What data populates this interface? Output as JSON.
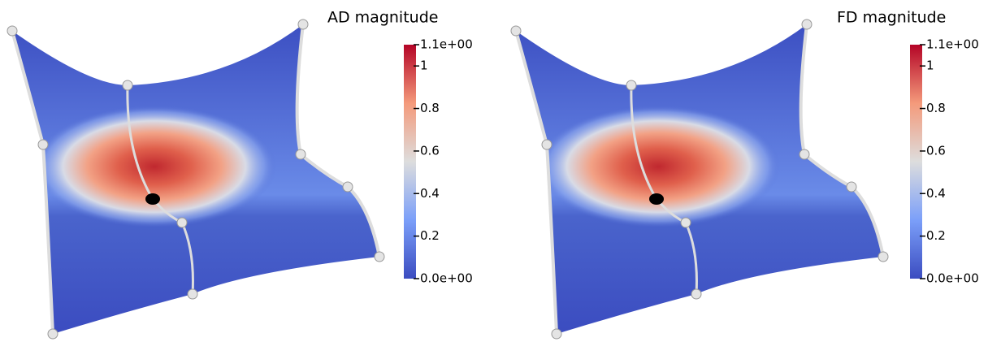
{
  "panels": [
    {
      "title": "AD magnitude",
      "colorbar": {
        "range": [
          0,
          1.1
        ],
        "ticks": [
          {
            "value": 1.1,
            "label": "1.1e+00"
          },
          1,
          0.8,
          0.6,
          0.4,
          0.2,
          {
            "value": 0,
            "label": "0.0e+00"
          }
        ]
      }
    },
    {
      "title": "FD magnitude",
      "colorbar": {
        "range": [
          0,
          1.1
        ],
        "ticks": [
          {
            "value": 1.1,
            "label": "1.1e+00"
          },
          1,
          0.8,
          0.6,
          0.4,
          0.2,
          {
            "value": 0,
            "label": "0.0e+00"
          }
        ]
      }
    }
  ]
}
